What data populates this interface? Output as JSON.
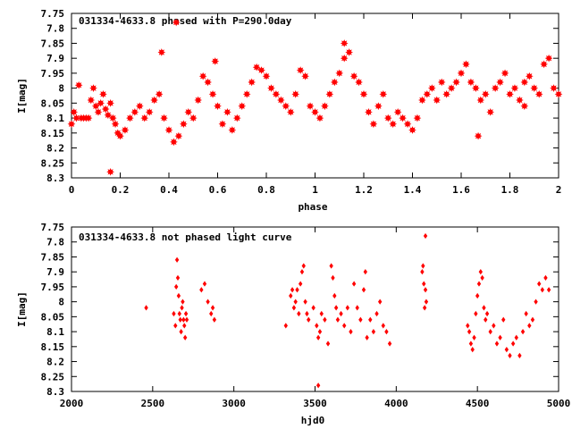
{
  "chart_data": [
    {
      "type": "scatter",
      "title": "031334-4633.8 phased with P=290.0day",
      "xlabel": "phase",
      "ylabel": "I[mag]",
      "xlim": [
        0,
        2
      ],
      "ylim": [
        8.3,
        7.75
      ],
      "y_inverted": true,
      "xticks": [
        "0",
        "0.2",
        "0.4",
        "0.6",
        "0.8",
        "1",
        "1.2",
        "1.4",
        "1.6",
        "1.8",
        "2"
      ],
      "yticks": [
        "7.75",
        "7.8",
        "7.85",
        "7.9",
        "7.95",
        "8",
        "8.05",
        "8.1",
        "8.15",
        "8.2",
        "8.25",
        "8.3"
      ],
      "grid": false,
      "marker_color": "#ff0000",
      "marker": "star",
      "series": [
        {
          "x": [
            0.0,
            0.01,
            0.02,
            0.03,
            0.04,
            0.05,
            0.06,
            0.07,
            0.08,
            0.09,
            0.1,
            0.11,
            0.12,
            0.13,
            0.14,
            0.15,
            0.16,
            0.17,
            0.18,
            0.19,
            0.2,
            0.22,
            0.24,
            0.26,
            0.28,
            0.3,
            0.32,
            0.34,
            0.36,
            0.38,
            0.4,
            0.42,
            0.44,
            0.46,
            0.48,
            0.5,
            0.52,
            0.54,
            0.56,
            0.58,
            0.6,
            0.62,
            0.64,
            0.66,
            0.68,
            0.7,
            0.72,
            0.74,
            0.76,
            0.78,
            0.8,
            0.82,
            0.84,
            0.86,
            0.88,
            0.9,
            0.92,
            0.94,
            0.96,
            0.98,
            1.0,
            1.02,
            1.04,
            1.06,
            1.08,
            1.1,
            1.12,
            1.14,
            1.16,
            1.18,
            1.2,
            1.22,
            1.24,
            1.26,
            1.28,
            1.3,
            1.32,
            1.34,
            1.36,
            1.38,
            1.4,
            1.42,
            1.44,
            1.46,
            1.48,
            1.5,
            1.52,
            1.54,
            1.56,
            1.58,
            1.6,
            1.62,
            1.64,
            1.66,
            1.68,
            1.7,
            1.72,
            1.74,
            1.76,
            1.78,
            1.8,
            1.82,
            1.84,
            1.86,
            1.88,
            1.9,
            1.92,
            1.94,
            1.96,
            1.98,
            2.0,
            0.16,
            0.43,
            0.37,
            0.59,
            1.12,
            1.86,
            1.67
          ],
          "y": [
            8.12,
            8.08,
            8.1,
            7.99,
            8.1,
            8.1,
            8.1,
            8.1,
            8.04,
            8.0,
            8.06,
            8.08,
            8.05,
            8.02,
            8.07,
            8.09,
            8.05,
            8.1,
            8.12,
            8.15,
            8.16,
            8.14,
            8.1,
            8.08,
            8.06,
            8.1,
            8.08,
            8.04,
            8.02,
            8.1,
            8.14,
            8.18,
            8.16,
            8.12,
            8.08,
            8.1,
            8.04,
            7.96,
            7.98,
            8.02,
            8.06,
            8.12,
            8.08,
            8.14,
            8.1,
            8.06,
            8.02,
            7.98,
            7.93,
            7.94,
            7.96,
            8.0,
            8.02,
            8.04,
            8.06,
            8.08,
            8.02,
            7.94,
            7.96,
            8.06,
            8.08,
            8.1,
            8.06,
            8.02,
            7.98,
            7.95,
            7.9,
            7.88,
            7.96,
            7.98,
            8.02,
            8.08,
            8.12,
            8.06,
            8.02,
            8.1,
            8.12,
            8.08,
            8.1,
            8.12,
            8.14,
            8.1,
            8.04,
            8.02,
            8.0,
            8.04,
            7.98,
            8.02,
            8.0,
            7.98,
            7.95,
            7.92,
            7.98,
            8.0,
            8.04,
            8.02,
            8.08,
            8.0,
            7.98,
            7.95,
            8.02,
            8.0,
            8.04,
            7.98,
            7.96,
            8.0,
            8.02,
            7.92,
            7.9,
            8.0,
            8.02,
            8.28,
            7.78,
            7.88,
            7.91,
            7.85,
            8.06,
            8.16
          ]
        }
      ]
    },
    {
      "type": "scatter",
      "title": "031334-4633.8 not phased light curve",
      "xlabel": "hjd0",
      "ylabel": "I[mag]",
      "xlim": [
        2000,
        5000
      ],
      "ylim": [
        8.3,
        7.75
      ],
      "y_inverted": true,
      "xticks": [
        "2000",
        "2500",
        "3000",
        "3500",
        "4000",
        "4500",
        "5000"
      ],
      "yticks": [
        "7.75",
        "7.8",
        "7.85",
        "7.9",
        "7.95",
        "8",
        "8.05",
        "8.1",
        "8.15",
        "8.2",
        "8.25",
        "8.3"
      ],
      "grid": false,
      "marker_color": "#ff0000",
      "marker": "diamond",
      "series": [
        {
          "x": [
            2460,
            2630,
            2640,
            2645,
            2650,
            2655,
            2660,
            2665,
            2670,
            2675,
            2680,
            2685,
            2690,
            2695,
            2700,
            2705,
            2710,
            2800,
            2820,
            2840,
            2860,
            2870,
            2880,
            3320,
            3350,
            3360,
            3370,
            3380,
            3390,
            3400,
            3410,
            3420,
            3430,
            3440,
            3450,
            3460,
            3490,
            3510,
            3520,
            3530,
            3540,
            3560,
            3580,
            3600,
            3610,
            3620,
            3630,
            3640,
            3660,
            3680,
            3700,
            3720,
            3740,
            3760,
            3780,
            3800,
            3810,
            3820,
            3840,
            3860,
            3880,
            3900,
            3920,
            3940,
            3960,
            4160,
            4165,
            4170,
            4175,
            4180,
            4185,
            4440,
            4450,
            4460,
            4470,
            4480,
            4490,
            4500,
            4510,
            4520,
            4530,
            4540,
            4550,
            4560,
            4580,
            4600,
            4620,
            4640,
            4660,
            4680,
            4700,
            4720,
            4740,
            4760,
            4780,
            4800,
            4820,
            4840,
            4860,
            4880,
            4900,
            4920,
            4940,
            3520,
            4180
          ],
          "y": [
            8.02,
            8.04,
            8.08,
            7.95,
            7.86,
            7.92,
            7.98,
            8.04,
            8.06,
            8.1,
            8.02,
            8.0,
            8.06,
            8.08,
            8.12,
            8.04,
            8.06,
            7.96,
            7.94,
            8.0,
            8.04,
            8.02,
            8.06,
            8.08,
            7.98,
            7.96,
            8.02,
            8.0,
            7.96,
            8.04,
            7.94,
            7.9,
            7.88,
            8.0,
            8.04,
            8.06,
            8.02,
            8.08,
            8.12,
            8.1,
            8.04,
            8.06,
            8.14,
            7.88,
            7.92,
            7.98,
            8.02,
            8.06,
            8.04,
            8.08,
            8.02,
            8.1,
            7.94,
            8.02,
            8.06,
            7.96,
            7.9,
            8.12,
            8.06,
            8.1,
            8.04,
            8.0,
            8.08,
            8.1,
            8.14,
            7.9,
            7.88,
            7.94,
            8.02,
            7.96,
            8.0,
            8.08,
            8.1,
            8.14,
            8.16,
            8.12,
            8.04,
            7.98,
            7.94,
            7.9,
            7.92,
            8.02,
            8.06,
            8.04,
            8.1,
            8.08,
            8.14,
            8.12,
            8.06,
            8.16,
            8.18,
            8.14,
            8.12,
            8.18,
            8.1,
            8.04,
            8.08,
            8.06,
            8.0,
            7.94,
            7.96,
            7.92,
            7.96,
            8.28,
            7.78
          ]
        }
      ]
    }
  ]
}
